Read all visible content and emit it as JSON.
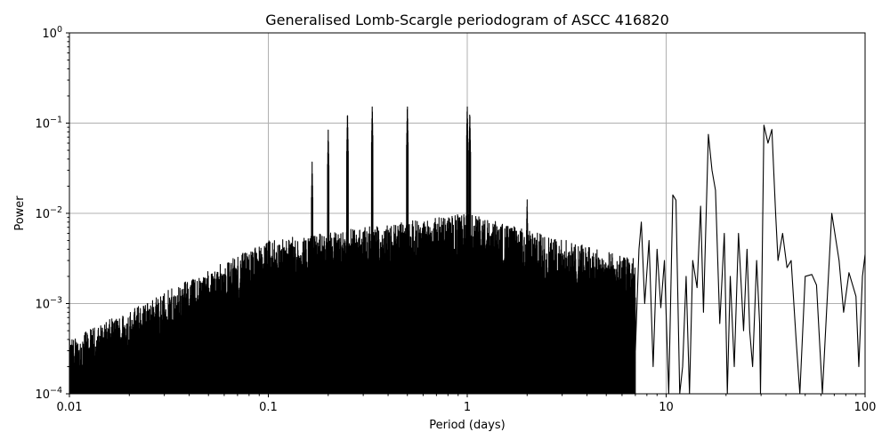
{
  "chart_data": {
    "type": "line",
    "title": "Generalised Lomb-Scargle periodogram of ASCC 416820",
    "xlabel": "Period (days)",
    "ylabel": "Power",
    "xscale": "log",
    "yscale": "log",
    "xlim": [
      0.01,
      100
    ],
    "ylim": [
      0.0001,
      1
    ],
    "grid": true,
    "legend": null,
    "x_ticks": [
      {
        "value": 0.01,
        "label": "0.01"
      },
      {
        "value": 0.1,
        "label": "0.1"
      },
      {
        "value": 1,
        "label": "1"
      },
      {
        "value": 10,
        "label": "10"
      },
      {
        "value": 100,
        "label": "100"
      }
    ],
    "y_ticks": [
      {
        "value": 0.0001,
        "base": "10",
        "exp": "−4"
      },
      {
        "value": 0.001,
        "base": "10",
        "exp": "−3"
      },
      {
        "value": 0.01,
        "base": "10",
        "exp": "−2"
      },
      {
        "value": 0.1,
        "base": "10",
        "exp": "−1"
      },
      {
        "value": 1,
        "base": "10",
        "exp": "0"
      }
    ],
    "line_color": "#000000",
    "grid_color": "#b0b0b0",
    "series": [
      {
        "name": "power",
        "notable_peaks": [
          {
            "period": 0.166,
            "power": 0.037
          },
          {
            "period": 0.2,
            "power": 0.085
          },
          {
            "period": 0.25,
            "power": 0.14
          },
          {
            "period": 0.333,
            "power": 0.165
          },
          {
            "period": 0.5,
            "power": 0.17
          },
          {
            "period": 1.0,
            "power": 0.165
          },
          {
            "period": 1.03,
            "power": 0.14
          },
          {
            "period": 2.0,
            "power": 0.015
          },
          {
            "period": 7.5,
            "power": 0.008
          },
          {
            "period": 11.0,
            "power": 0.017
          },
          {
            "period": 16.5,
            "power": 0.075
          },
          {
            "period": 31.0,
            "power": 0.095
          },
          {
            "period": 34.0,
            "power": 0.085
          },
          {
            "period": 40.0,
            "power": 0.006
          },
          {
            "period": 68.0,
            "power": 0.01
          },
          {
            "period": 100.0,
            "power": 0.0035
          }
        ],
        "smooth_tail": [
          [
            7.0,
            0.0003
          ],
          [
            7.3,
            0.004
          ],
          [
            7.5,
            0.008
          ],
          [
            7.8,
            0.001
          ],
          [
            8.2,
            0.005
          ],
          [
            8.6,
            0.0002
          ],
          [
            9.0,
            0.004
          ],
          [
            9.4,
            0.0009
          ],
          [
            9.8,
            0.003
          ],
          [
            10.3,
            0.0001
          ],
          [
            10.8,
            0.016
          ],
          [
            11.2,
            0.014
          ],
          [
            11.7,
            0.0001
          ],
          [
            12.1,
            0.0002
          ],
          [
            12.6,
            0.002
          ],
          [
            13.1,
            0.0001
          ],
          [
            13.6,
            0.003
          ],
          [
            14.3,
            0.0015
          ],
          [
            14.9,
            0.012
          ],
          [
            15.4,
            0.0008
          ],
          [
            16.3,
            0.075
          ],
          [
            17.0,
            0.03
          ],
          [
            17.7,
            0.018
          ],
          [
            18.6,
            0.0006
          ],
          [
            19.6,
            0.006
          ],
          [
            20.3,
            0.0001
          ],
          [
            21.0,
            0.002
          ],
          [
            22.0,
            0.0002
          ],
          [
            23.1,
            0.006
          ],
          [
            24.5,
            0.0005
          ],
          [
            25.5,
            0.004
          ],
          [
            26.3,
            0.0005
          ],
          [
            27.2,
            0.0002
          ],
          [
            28.5,
            0.003
          ],
          [
            29.5,
            0.0006
          ],
          [
            29.8,
            0.0001
          ],
          [
            31.0,
            0.095
          ],
          [
            32.5,
            0.06
          ],
          [
            34.0,
            0.085
          ],
          [
            35.5,
            0.01
          ],
          [
            36.5,
            0.003
          ],
          [
            38.5,
            0.006
          ],
          [
            40.5,
            0.0025
          ],
          [
            42.5,
            0.003
          ],
          [
            45.0,
            0.0004
          ],
          [
            47.0,
            0.0001
          ],
          [
            50.0,
            0.002
          ],
          [
            54.0,
            0.0021
          ],
          [
            57.0,
            0.0016
          ],
          [
            61.0,
            0.0001
          ],
          [
            64.0,
            0.0008
          ],
          [
            68.0,
            0.01
          ],
          [
            74.0,
            0.003
          ],
          [
            78.0,
            0.0008
          ],
          [
            83.0,
            0.0022
          ],
          [
            90.0,
            0.0012
          ],
          [
            93.0,
            0.0002
          ],
          [
            97.0,
            0.002
          ],
          [
            100.0,
            0.0035
          ]
        ]
      }
    ]
  }
}
